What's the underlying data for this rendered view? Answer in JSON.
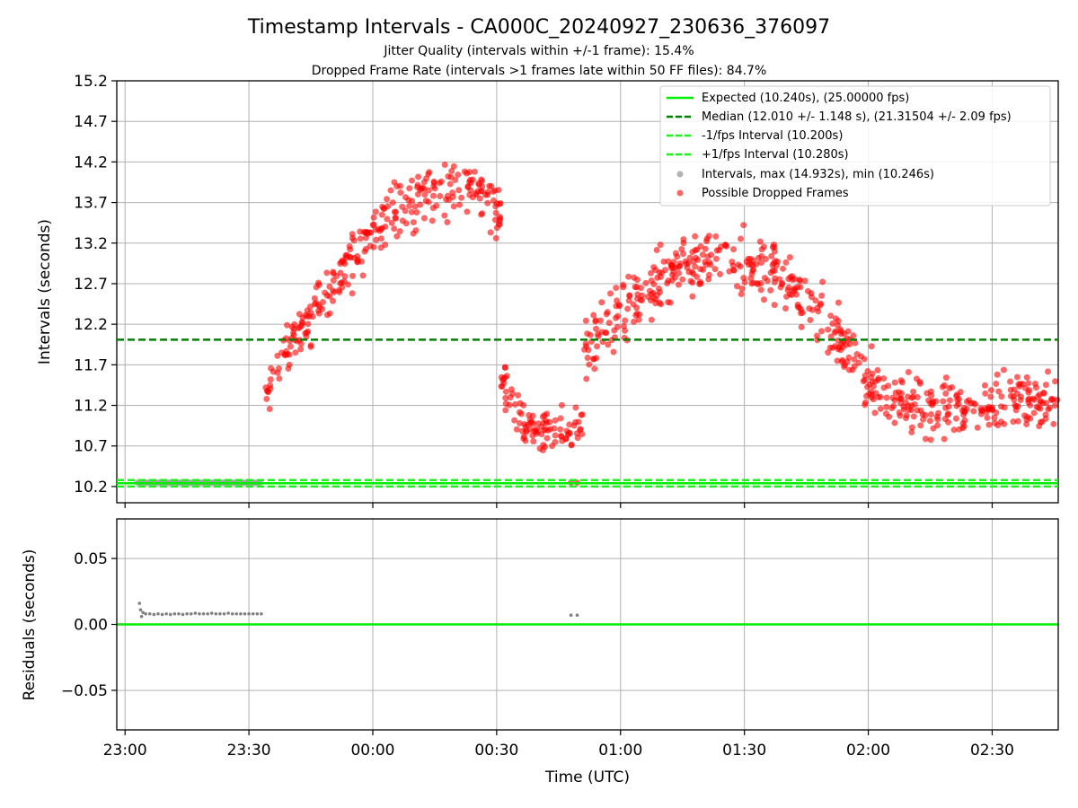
{
  "chart_data": [
    {
      "type": "scatter",
      "title": "Timestamp Intervals - CA000C_20240927_230636_376097",
      "subtitle_1": "Jitter Quality (intervals within +/-1 frame): 15.4%",
      "subtitle_2": "Dropped Frame Rate (intervals >1 frames late within 50 FF files): 84.7%",
      "xlabel": "",
      "ylabel": "Intervals (seconds)",
      "xlim": [
        "22:58:00",
        "02:46:00"
      ],
      "ylim": [
        10.0,
        15.2
      ],
      "y_ticks": [
        10.2,
        10.7,
        11.2,
        11.7,
        12.2,
        12.7,
        13.2,
        13.7,
        14.2,
        14.7,
        15.2
      ],
      "y_tick_labels": [
        "10.2",
        "10.7",
        "11.2",
        "11.7",
        "12.2",
        "12.7",
        "13.2",
        "13.7",
        "14.2",
        "14.7",
        "15.2"
      ],
      "grid": true,
      "legend_position": "top-right",
      "reference_lines": [
        {
          "name": "Expected (10.240s), (25.00000 fps)",
          "y": 10.24,
          "color": "#00ee00",
          "style": "solid"
        },
        {
          "name": "Median (12.010 +/- 1.148 s), (21.31504 +/- 2.09 fps)",
          "y": 12.01,
          "color": "#008000",
          "style": "dashed"
        },
        {
          "name": "-1/fps Interval (10.200s)",
          "y": 10.2,
          "color": "#22ee22",
          "style": "dashed"
        },
        {
          "name": "+1/fps Interval (10.280s)",
          "y": 10.28,
          "color": "#22ee22",
          "style": "dashed"
        }
      ],
      "series": [
        {
          "name": "Intervals, max (14.932s), min (10.246s)",
          "color": "#a0a0a0",
          "x_start": "23:03:00",
          "x_end": "23:33:00",
          "y": 10.248
        },
        {
          "name": "Possible Dropped Frames",
          "color": "#ff0000",
          "segments": [
            {
              "from": "23:34:00",
              "to": "00:31:00",
              "y_start": 11.45,
              "y_peak": 13.9,
              "peak_at": "00:22:00",
              "y_end": 13.5,
              "spread": 0.28
            },
            {
              "from": "00:31:00",
              "to": "00:51:00",
              "y_start": 11.5,
              "y_peak": 10.85,
              "peak_at": "00:41:00",
              "y_end": 10.95,
              "spread": 0.22
            },
            {
              "from": "00:51:00",
              "to": "01:58:00",
              "y_start": 11.9,
              "y_peak": 13.0,
              "peak_at": "01:25:00",
              "y_end": 11.75,
              "spread": 0.32
            },
            {
              "from": "01:58:00",
              "to": "02:46:00",
              "y_start": 11.55,
              "y_peak": 11.2,
              "peak_at": "02:15:00",
              "y_end": 11.3,
              "spread": 0.3
            }
          ]
        }
      ]
    },
    {
      "type": "scatter",
      "xlabel": "Time (UTC)",
      "ylabel": "Residuals (seconds)",
      "ylim": [
        -0.08,
        0.08
      ],
      "y_ticks": [
        -0.05,
        0.0,
        0.05
      ],
      "y_tick_labels": [
        "−0.05",
        "0.00",
        "0.05"
      ],
      "x_ticks": [
        "23:00",
        "23:30",
        "00:00",
        "00:30",
        "01:00",
        "01:30",
        "02:00",
        "02:30"
      ],
      "grid": true,
      "reference_line": {
        "y": 0.0,
        "color": "#00ee00"
      },
      "series": [
        {
          "name": "Residuals",
          "color": "#808080",
          "points": [
            {
              "x": "23:03:30",
              "y": 0.016
            },
            {
              "x": "23:03:45",
              "y": 0.011
            },
            {
              "x": "23:04:00",
              "y": 0.006
            },
            {
              "x": "23:04:20",
              "y": 0.009
            },
            {
              "x": "23:05:00",
              "y": 0.008
            },
            {
              "x": "23:06:00",
              "y": 0.008
            },
            {
              "x": "23:07:00",
              "y": 0.0075
            },
            {
              "x": "23:08:00",
              "y": 0.008
            },
            {
              "x": "23:09:00",
              "y": 0.0075
            },
            {
              "x": "23:10:00",
              "y": 0.008
            },
            {
              "x": "23:11:00",
              "y": 0.0075
            },
            {
              "x": "23:12:00",
              "y": 0.008
            },
            {
              "x": "23:13:00",
              "y": 0.008
            },
            {
              "x": "23:14:00",
              "y": 0.0075
            },
            {
              "x": "23:15:00",
              "y": 0.008
            },
            {
              "x": "23:16:00",
              "y": 0.008
            },
            {
              "x": "23:17:00",
              "y": 0.0085
            },
            {
              "x": "23:18:00",
              "y": 0.008
            },
            {
              "x": "23:19:00",
              "y": 0.008
            },
            {
              "x": "23:20:00",
              "y": 0.008
            },
            {
              "x": "23:21:00",
              "y": 0.0085
            },
            {
              "x": "23:22:00",
              "y": 0.008
            },
            {
              "x": "23:23:00",
              "y": 0.008
            },
            {
              "x": "23:24:00",
              "y": 0.008
            },
            {
              "x": "23:25:00",
              "y": 0.0085
            },
            {
              "x": "23:26:00",
              "y": 0.008
            },
            {
              "x": "23:27:00",
              "y": 0.008
            },
            {
              "x": "23:28:00",
              "y": 0.008
            },
            {
              "x": "23:29:00",
              "y": 0.008
            },
            {
              "x": "23:30:00",
              "y": 0.008
            },
            {
              "x": "23:31:00",
              "y": 0.008
            },
            {
              "x": "23:32:00",
              "y": 0.008
            },
            {
              "x": "23:33:00",
              "y": 0.008
            },
            {
              "x": "00:48:00",
              "y": 0.007
            },
            {
              "x": "00:49:30",
              "y": 0.007
            }
          ]
        }
      ]
    }
  ]
}
